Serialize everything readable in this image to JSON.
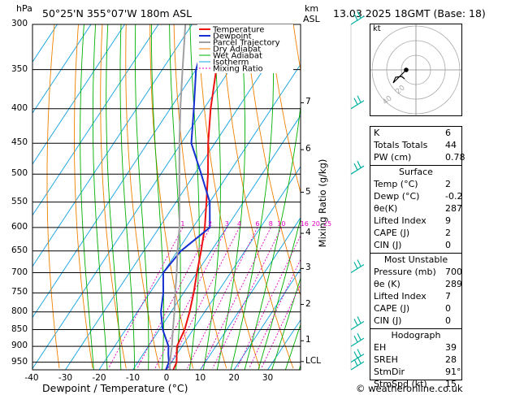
{
  "header": {
    "location": "50°25'N  355°07'W  180m  ASL",
    "datetime": "13.03.2025  18GMT  (Base: 18)",
    "hpa_unit": "hPa",
    "km_unit": "km",
    "asl_unit": "ASL"
  },
  "colors": {
    "temperature": "#ee1111",
    "dewpoint": "#1530d0",
    "parcel": "#a0a0a0",
    "dry_adiabat": "#f08000",
    "wet_adiabat": "#00b000",
    "isotherm": "#10a0e0",
    "mixing_ratio": "#e000c0",
    "wind": "#00b0a0"
  },
  "chart_data": {
    "type": "line",
    "xlabel": "Dewpoint / Temperature (°C)",
    "ylabel": "Mixing Ratio (g/kg)",
    "x_ticks": [
      -40,
      -30,
      -20,
      -10,
      0,
      10,
      20,
      30
    ],
    "pressure_ticks": [
      300,
      350,
      400,
      450,
      500,
      550,
      600,
      650,
      700,
      750,
      800,
      850,
      900,
      950
    ],
    "km_ticks": [
      {
        "label": "7",
        "p": 392
      },
      {
        "label": "6",
        "p": 460
      },
      {
        "label": "5",
        "p": 532
      },
      {
        "label": "4",
        "p": 612
      },
      {
        "label": "3",
        "p": 690
      },
      {
        "label": "2",
        "p": 780
      },
      {
        "label": "1",
        "p": 883
      },
      {
        "label": "LCL",
        "p": 948
      }
    ],
    "mixing_ratio_labels": [
      "1",
      "2",
      "3",
      "4",
      "6",
      "8",
      "10",
      "16",
      "20",
      "25"
    ],
    "legend": [
      "Temperature",
      "Dewpoint",
      "Parcel Trajectory",
      "Dry Adiabat",
      "Wet Adiabat",
      "Isotherm",
      "Mixing Ratio"
    ],
    "series": [
      {
        "name": "Temperature",
        "points": [
          [
            2,
            975
          ],
          [
            1.5,
            950
          ],
          [
            0,
            925
          ],
          [
            -1.5,
            900
          ],
          [
            -2.5,
            850
          ],
          [
            -4.5,
            800
          ],
          [
            -7,
            750
          ],
          [
            -10,
            700
          ],
          [
            -13,
            650
          ],
          [
            -16.5,
            600
          ],
          [
            -21,
            550
          ],
          [
            -26,
            500
          ],
          [
            -32,
            450
          ],
          [
            -38,
            400
          ],
          [
            -44,
            350
          ],
          [
            -52,
            300
          ]
        ]
      },
      {
        "name": "Dewpoint",
        "points": [
          [
            -0.2,
            975
          ],
          [
            -0.8,
            950
          ],
          [
            -2.5,
            925
          ],
          [
            -4,
            900
          ],
          [
            -9,
            850
          ],
          [
            -13,
            800
          ],
          [
            -16,
            750
          ],
          [
            -20,
            700
          ],
          [
            -19,
            650
          ],
          [
            -15,
            600
          ],
          [
            -20,
            550
          ],
          [
            -28,
            500
          ],
          [
            -37,
            450
          ],
          [
            -43,
            400
          ],
          [
            -50,
            350
          ],
          [
            -55,
            300
          ]
        ]
      },
      {
        "name": "Parcel Trajectory",
        "points": [
          [
            1,
            975
          ],
          [
            -0.5,
            950
          ],
          [
            -3,
            900
          ],
          [
            -6,
            850
          ],
          [
            -9,
            800
          ],
          [
            -12.5,
            750
          ],
          [
            -16,
            700
          ],
          [
            -20,
            650
          ],
          [
            -24,
            600
          ],
          [
            -29,
            550
          ],
          [
            -34.5,
            500
          ],
          [
            -40.5,
            450
          ],
          [
            -47,
            400
          ],
          [
            -54,
            350
          ],
          [
            -62,
            300
          ]
        ]
      }
    ],
    "wind_levels": [
      300,
      400,
      500,
      700,
      850,
      900,
      950,
      975
    ]
  },
  "hodograph": {
    "unit_label": "kt",
    "ring_labels": [
      "20",
      "40"
    ]
  },
  "indices": {
    "rows": [
      {
        "label": "K",
        "value": "6"
      },
      {
        "label": "Totals Totals",
        "value": "44"
      },
      {
        "label": "PW (cm)",
        "value": "0.78"
      }
    ],
    "surface_title": "Surface",
    "surface": [
      {
        "label": "Temp (°C)",
        "value": "2"
      },
      {
        "label": "Dewp (°C)",
        "value": "-0.2"
      },
      {
        "label": "θe(K)",
        "value": "287"
      },
      {
        "label": "Lifted Index",
        "value": "9"
      },
      {
        "label": "CAPE (J)",
        "value": "2"
      },
      {
        "label": "CIN (J)",
        "value": "0"
      }
    ],
    "mu_title": "Most Unstable",
    "most_unstable": [
      {
        "label": "Pressure (mb)",
        "value": "700"
      },
      {
        "label": "θe (K)",
        "value": "289"
      },
      {
        "label": "Lifted Index",
        "value": "7"
      },
      {
        "label": "CAPE (J)",
        "value": "0"
      },
      {
        "label": "CIN (J)",
        "value": "0"
      }
    ],
    "hodo_title": "Hodograph",
    "hodograph": [
      {
        "label": "EH",
        "value": "39"
      },
      {
        "label": "SREH",
        "value": "28"
      },
      {
        "label": "StmDir",
        "value": "91°"
      },
      {
        "label": "StmSpd (kt)",
        "value": "15"
      }
    ]
  },
  "footer": {
    "copyright": "© weatheronline.co.uk"
  }
}
